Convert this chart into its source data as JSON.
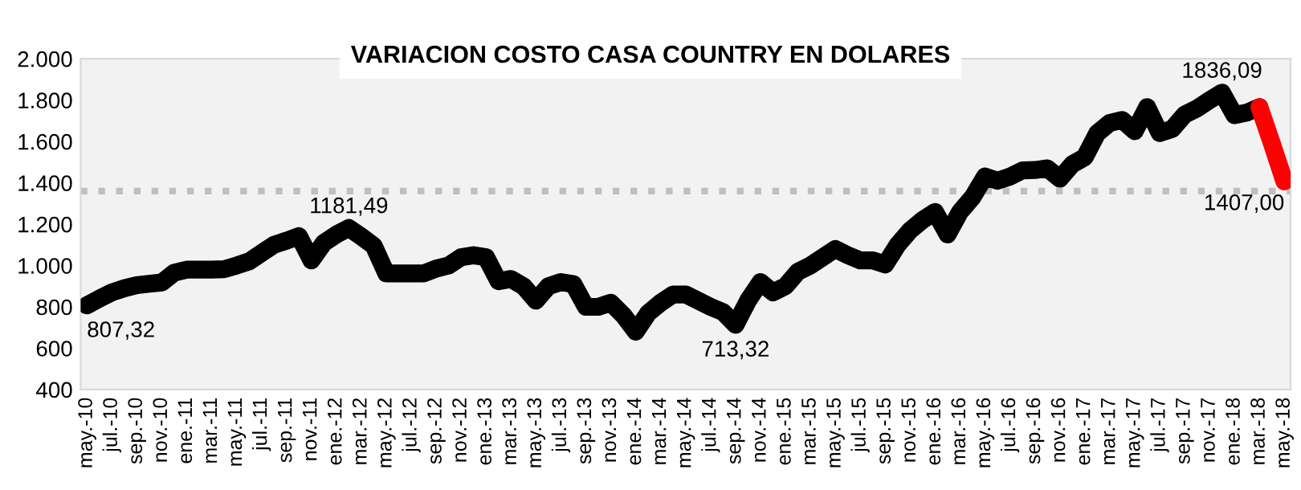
{
  "chart_data": {
    "type": "line",
    "title": "VARIACION COSTO CASA COUNTRY EN DOLARES",
    "categories": [
      "may.-10",
      null,
      "jul.-10",
      null,
      "sep.-10",
      null,
      "nov.-10",
      null,
      "ene.-11",
      null,
      "mar.-11",
      null,
      "may.-11",
      null,
      "jul.-11",
      null,
      "sep.-11",
      null,
      "nov.-11",
      null,
      "ene.-12",
      null,
      "mar.-12",
      null,
      "may.-12",
      null,
      "jul.-12",
      null,
      "sep.-12",
      null,
      "nov.-12",
      null,
      "ene.-13",
      null,
      "mar.-13",
      null,
      "may.-13",
      null,
      "jul.-13",
      null,
      "sep.-13",
      null,
      "nov.-13",
      null,
      "ene.-14",
      null,
      "mar.-14",
      null,
      "may.-14",
      null,
      "jul.-14",
      null,
      "sep.-14",
      null,
      "nov.-14",
      null,
      "ene.-15",
      null,
      "mar.-15",
      null,
      "may.-15",
      null,
      "jul.-15",
      null,
      "sep.-15",
      null,
      "nov.-15",
      null,
      "ene.-16",
      null,
      "mar.-16",
      null,
      "may.-16",
      null,
      "jul.-16",
      null,
      "sep.-16",
      null,
      "nov.-16",
      null,
      "ene.-17",
      null,
      "mar.-17",
      null,
      "may.-17",
      null,
      "jul.-17",
      null,
      "sep.-17",
      null,
      "nov.-17",
      null,
      "ene.-18",
      null,
      "mar.-18",
      null,
      "may.-18"
    ],
    "series": [
      {
        "color": "#000000",
        "values": [
          807.32,
          840,
          870,
          890,
          905,
          912,
          918,
          965,
          980,
          980,
          980,
          982,
          1000,
          1020,
          1060,
          1100,
          1120,
          1142,
          1025,
          1110,
          1150,
          1181.49,
          1140,
          1095,
          962,
          962,
          962,
          962,
          985,
          1000,
          1040,
          1050,
          1040,
          924,
          935,
          900,
          830,
          900,
          920,
          910,
          800,
          800,
          820,
          760,
          680,
          770,
          820,
          860,
          860,
          830,
          800,
          775,
          713.32,
          830,
          920,
          870,
          900,
          970,
          1000,
          1040,
          1080,
          1050,
          1025,
          1025,
          1005,
          1100,
          1170,
          1220,
          1259,
          1150,
          1260,
          1330,
          1431,
          1410,
          1430,
          1460,
          1462,
          1470,
          1420,
          1490,
          1524,
          1640,
          1690,
          1704,
          1650,
          1766,
          1641,
          1660,
          1730,
          1760,
          1800,
          1836.09,
          1727,
          1740,
          1766,
          null,
          null
        ],
        "value_labels": [
          "807,32",
          null,
          null,
          null,
          null,
          null,
          null,
          null,
          null,
          null,
          null,
          null,
          null,
          null,
          null,
          null,
          null,
          null,
          null,
          null,
          null,
          "1181,49",
          null,
          null,
          null,
          null,
          null,
          null,
          null,
          null,
          null,
          null,
          null,
          null,
          null,
          null,
          null,
          null,
          null,
          null,
          null,
          null,
          null,
          null,
          null,
          null,
          null,
          null,
          null,
          null,
          null,
          null,
          "713,32",
          null,
          null,
          null,
          null,
          null,
          null,
          null,
          null,
          null,
          null,
          null,
          null,
          null,
          null,
          null,
          null,
          null,
          null,
          null,
          null,
          null,
          null,
          null,
          null,
          null,
          null,
          null,
          null,
          null,
          null,
          null,
          null,
          null,
          null,
          null,
          null,
          null,
          null,
          "1836,09",
          null,
          null,
          null,
          null,
          null
        ]
      },
      {
        "color": "#ff0000",
        "values": [
          null,
          null,
          null,
          null,
          null,
          null,
          null,
          null,
          null,
          null,
          null,
          null,
          null,
          null,
          null,
          null,
          null,
          null,
          null,
          null,
          null,
          null,
          null,
          null,
          null,
          null,
          null,
          null,
          null,
          null,
          null,
          null,
          null,
          null,
          null,
          null,
          null,
          null,
          null,
          null,
          null,
          null,
          null,
          null,
          null,
          null,
          null,
          null,
          null,
          null,
          null,
          null,
          null,
          null,
          null,
          null,
          null,
          null,
          null,
          null,
          null,
          null,
          null,
          null,
          null,
          null,
          null,
          null,
          null,
          null,
          null,
          null,
          null,
          null,
          null,
          null,
          null,
          null,
          null,
          null,
          null,
          null,
          null,
          null,
          null,
          null,
          null,
          null,
          null,
          null,
          null,
          null,
          null,
          null,
          1766,
          1590,
          1407.0
        ],
        "value_labels": [
          null,
          null,
          null,
          null,
          null,
          null,
          null,
          null,
          null,
          null,
          null,
          null,
          null,
          null,
          null,
          null,
          null,
          null,
          null,
          null,
          null,
          null,
          null,
          null,
          null,
          null,
          null,
          null,
          null,
          null,
          null,
          null,
          null,
          null,
          null,
          null,
          null,
          null,
          null,
          null,
          null,
          null,
          null,
          null,
          null,
          null,
          null,
          null,
          null,
          null,
          null,
          null,
          null,
          null,
          null,
          null,
          null,
          null,
          null,
          null,
          null,
          null,
          null,
          null,
          null,
          null,
          null,
          null,
          null,
          null,
          null,
          null,
          null,
          null,
          null,
          null,
          null,
          null,
          null,
          null,
          null,
          null,
          null,
          null,
          null,
          null,
          null,
          null,
          null,
          null,
          null,
          null,
          null,
          null,
          null,
          null,
          "1407,00"
        ]
      }
    ],
    "ylim": [
      400,
      2000
    ],
    "yticks": [
      {
        "value": 400,
        "label": "400"
      },
      {
        "value": 600,
        "label": "600"
      },
      {
        "value": 800,
        "label": "800"
      },
      {
        "value": 1000,
        "label": "1.000"
      },
      {
        "value": 1200,
        "label": "1.200"
      },
      {
        "value": 1400,
        "label": "1.400"
      },
      {
        "value": 1600,
        "label": "1.600"
      },
      {
        "value": 1800,
        "label": "1.800"
      },
      {
        "value": 2000,
        "label": "2.000"
      }
    ],
    "ref_lines": [
      {
        "axis": "y",
        "value": 1360,
        "color": "#bfbfbf",
        "line_style": "dotted"
      }
    ],
    "grid": false,
    "marker": "none",
    "line_style": "solid"
  }
}
